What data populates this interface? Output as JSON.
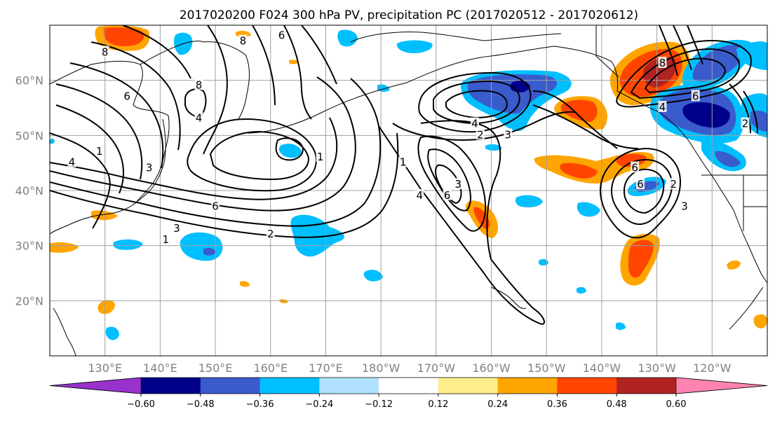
{
  "title": "2017020200 F024 300 hPa PV, precipitation PC (2017020512 - 2017020612)",
  "map": {
    "projection": "plate-carree",
    "lon_range": [
      120,
      250
    ],
    "lat_range": [
      10,
      70
    ],
    "lon_ticks": [
      {
        "lon": 130,
        "label": "130°E"
      },
      {
        "lon": 140,
        "label": "140°E"
      },
      {
        "lon": 150,
        "label": "150°E"
      },
      {
        "lon": 160,
        "label": "160°E"
      },
      {
        "lon": 170,
        "label": "170°E"
      },
      {
        "lon": 180,
        "label": "180°W"
      },
      {
        "lon": 190,
        "label": "170°W"
      },
      {
        "lon": 200,
        "label": "160°W"
      },
      {
        "lon": 210,
        "label": "150°W"
      },
      {
        "lon": 220,
        "label": "140°W"
      },
      {
        "lon": 230,
        "label": "130°W"
      },
      {
        "lon": 240,
        "label": "120°W"
      }
    ],
    "lat_ticks": [
      {
        "lat": 20,
        "label": "20°N"
      },
      {
        "lat": 30,
        "label": "30°N"
      },
      {
        "lat": 40,
        "label": "40°N"
      },
      {
        "lat": 50,
        "label": "50°N"
      },
      {
        "lat": 60,
        "label": "60°N"
      }
    ],
    "grid": true
  },
  "contour_labels": [
    {
      "lon": 134,
      "lat": 57,
      "text": "6"
    },
    {
      "lon": 130,
      "lat": 65,
      "text": "8"
    },
    {
      "lon": 147,
      "lat": 59,
      "text": "8"
    },
    {
      "lon": 155,
      "lat": 67,
      "text": "8"
    },
    {
      "lon": 162,
      "lat": 68,
      "text": "6"
    },
    {
      "lon": 147,
      "lat": 53,
      "text": "4"
    },
    {
      "lon": 124,
      "lat": 45,
      "text": "4"
    },
    {
      "lon": 129,
      "lat": 47,
      "text": "1"
    },
    {
      "lon": 138,
      "lat": 44,
      "text": "3"
    },
    {
      "lon": 150,
      "lat": 37,
      "text": "6"
    },
    {
      "lon": 169,
      "lat": 46,
      "text": "1"
    },
    {
      "lon": 143,
      "lat": 33,
      "text": "3"
    },
    {
      "lon": 141,
      "lat": 31,
      "text": "1"
    },
    {
      "lon": 160,
      "lat": 32,
      "text": "2"
    },
    {
      "lon": 184,
      "lat": 45,
      "text": "1"
    },
    {
      "lon": 187,
      "lat": 39,
      "text": "4"
    },
    {
      "lon": 192,
      "lat": 39,
      "text": "6"
    },
    {
      "lon": 194,
      "lat": 41,
      "text": "3"
    },
    {
      "lon": 197,
      "lat": 52,
      "text": "4"
    },
    {
      "lon": 198,
      "lat": 50,
      "text": "2"
    },
    {
      "lon": 203,
      "lat": 50,
      "text": "3"
    },
    {
      "lon": 231,
      "lat": 63,
      "text": "8"
    },
    {
      "lon": 237,
      "lat": 57,
      "text": "6"
    },
    {
      "lon": 231,
      "lat": 55,
      "text": "4"
    },
    {
      "lon": 226,
      "lat": 44,
      "text": "6"
    },
    {
      "lon": 227,
      "lat": 41,
      "text": "6"
    },
    {
      "lon": 235,
      "lat": 37,
      "text": "3"
    },
    {
      "lon": 233,
      "lat": 41,
      "text": "2"
    },
    {
      "lon": 246,
      "lat": 52,
      "text": "2"
    }
  ],
  "colorbar": {
    "levels": [
      "−0.60",
      "−0.48",
      "−0.36",
      "−0.24",
      "−0.12",
      "0.12",
      "0.24",
      "0.36",
      "0.48",
      "0.60"
    ],
    "colors": [
      "#9932cc",
      "#00008b",
      "#3a5bcc",
      "#00bfff",
      "#b0e2ff",
      "#ffffff",
      "#ffec8b",
      "#ffa500",
      "#ff4500",
      "#b22222",
      "#ff83b0"
    ],
    "extend": "both"
  }
}
